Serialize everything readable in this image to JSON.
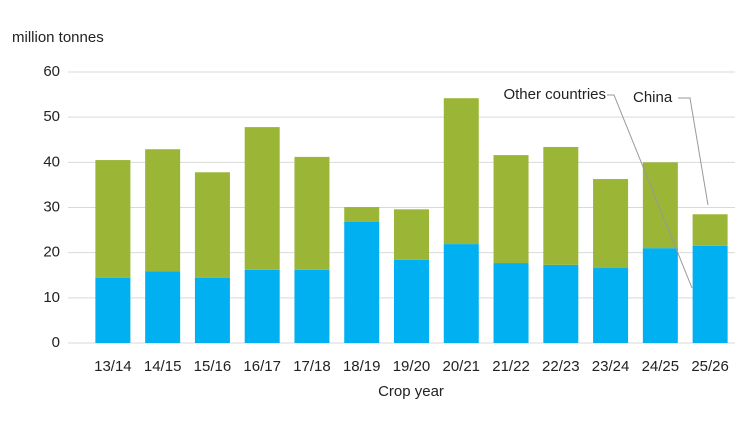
{
  "chart_data": {
    "type": "stacked-bar",
    "y_axis_label": "million tonnes",
    "x_axis_label": "Crop year",
    "categories": [
      "13/14",
      "14/15",
      "15/16",
      "16/17",
      "17/18",
      "18/19",
      "19/20",
      "20/21",
      "21/22",
      "22/23",
      "23/24",
      "24/25",
      "25/26"
    ],
    "series": [
      {
        "name": "China",
        "color": "#00b0f0",
        "values": [
          14.4,
          15.9,
          14.4,
          16.2,
          16.2,
          26.8,
          18.4,
          21.9,
          17.7,
          17.3,
          16.6,
          21.0,
          21.5
        ]
      },
      {
        "name": "Other countries",
        "color": "#9bb536",
        "values": [
          26.1,
          27.0,
          23.4,
          31.6,
          25.0,
          3.3,
          11.2,
          32.3,
          23.9,
          26.1,
          19.7,
          19.0,
          7.0
        ]
      }
    ],
    "ylim": [
      0,
      60
    ],
    "yticks": [
      0,
      10,
      20,
      30,
      40,
      50,
      60
    ],
    "grid": true
  }
}
